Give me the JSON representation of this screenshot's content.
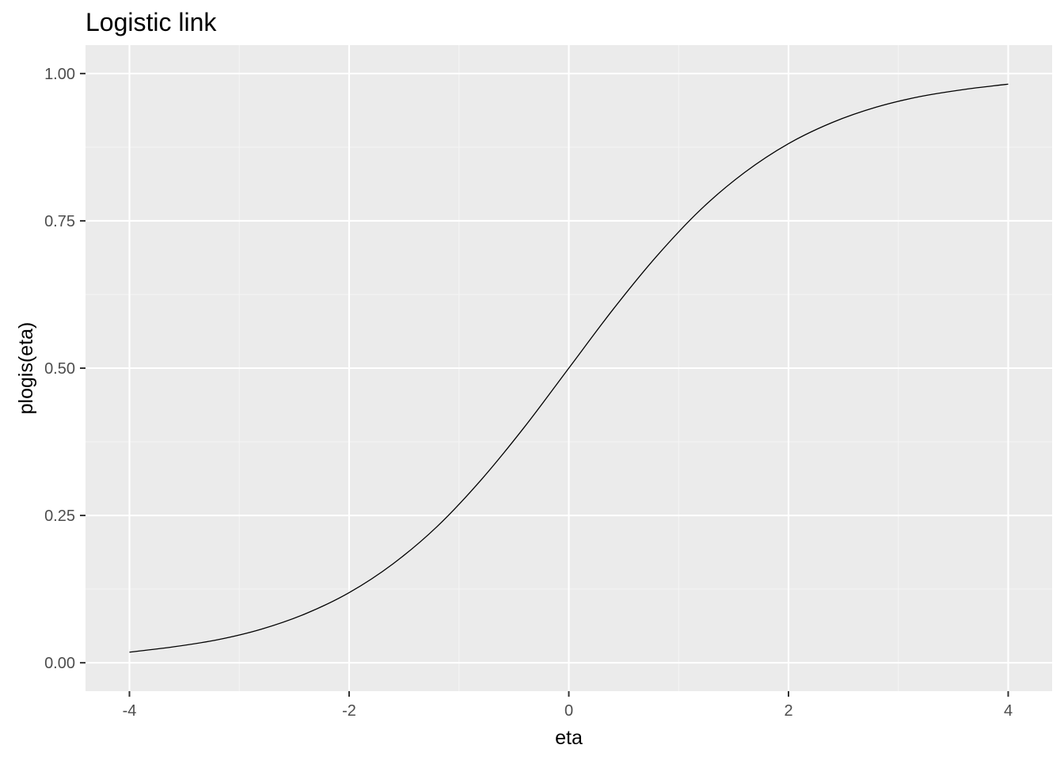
{
  "chart_data": {
    "type": "line",
    "title": "Logistic link",
    "xlabel": "eta",
    "ylabel": "plogis(eta)",
    "xlim": [
      -4,
      4
    ],
    "ylim": [
      0,
      1
    ],
    "x_ticks": [
      -4,
      -2,
      0,
      2,
      4
    ],
    "x_tick_labels": [
      "-4",
      "-2",
      "0",
      "2",
      "4"
    ],
    "y_ticks": [
      0,
      0.25,
      0.5,
      0.75,
      1
    ],
    "y_tick_labels": [
      "0.00",
      "0.25",
      "0.50",
      "0.75",
      "1.00"
    ],
    "grid": true,
    "legend": "none",
    "series": [
      {
        "x": [
          -4,
          -3.6,
          -3.2,
          -2.8,
          -2.4,
          -2,
          -1.6,
          -1.2,
          -0.8,
          -0.4,
          0,
          0.4,
          0.8,
          1.2,
          1.6,
          2,
          2.4,
          2.8,
          3.2,
          3.6,
          4
        ],
        "y": [
          0.018,
          0.027,
          0.039,
          0.057,
          0.083,
          0.119,
          0.168,
          0.231,
          0.31,
          0.401,
          0.5,
          0.599,
          0.69,
          0.769,
          0.832,
          0.881,
          0.917,
          0.943,
          0.961,
          0.973,
          0.982
        ],
        "color": "#000000"
      }
    ],
    "colors": {
      "panel_background": "#ebebeb",
      "grid_major": "#ffffff",
      "grid_minor": "#f4f4f4",
      "tick_text": "#4d4d4d",
      "tick_mark": "#333333"
    }
  }
}
